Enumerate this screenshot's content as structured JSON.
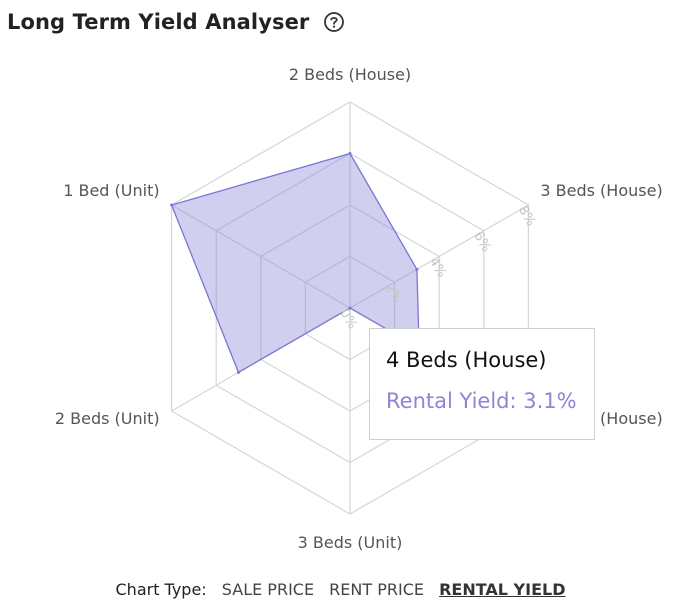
{
  "header": {
    "title": "Long Term Yield Analyser",
    "help_icon": "help-circle-icon"
  },
  "chart_data": {
    "type": "radar",
    "title": "",
    "categories": [
      "2 Beds (House)",
      "3 Beds (House)",
      "4 Beds (House)",
      "3 Beds (Unit)",
      "2 Beds (Unit)",
      "1 Bed (Unit)"
    ],
    "series": [
      {
        "values": [
          6.0,
          3.0,
          3.1,
          0.0,
          5.0,
          8.0
        ]
      }
    ],
    "ticks": [
      "0%",
      "2%",
      "4%",
      "6%",
      "8%"
    ],
    "rmax": 8,
    "grid": true,
    "colors": {
      "fill": "#8a86d8",
      "stroke": "#7a76d6",
      "grid": "#d6d6d6"
    }
  },
  "tooltip": {
    "title": "4 Beds (House)",
    "value": "Rental Yield: 3.1%"
  },
  "chart_type": {
    "label": "Chart Type:",
    "options": [
      "SALE PRICE",
      "RENT PRICE",
      "RENTAL YIELD"
    ],
    "selected": "RENTAL YIELD"
  }
}
